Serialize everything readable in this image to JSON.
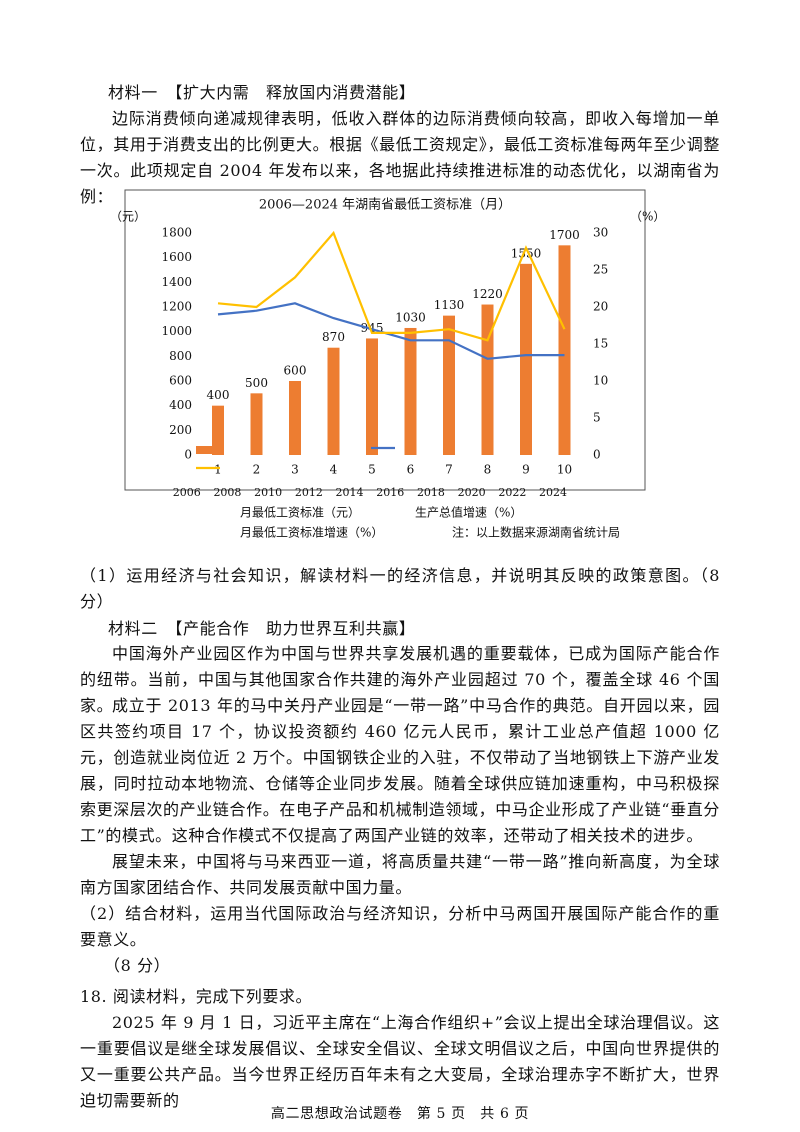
{
  "material1": {
    "heading": "材料一　【扩大内需　释放国内消费潜能】",
    "paragraph": "边际消费倾向递减规律表明，低收入群体的边际消费倾向较高，即收入每增加一单位，其用于消费支出的比例更大。根据《最低工资规定》，最低工资标准每两年至少调整一次。此项规定自 2004 年发布以来，各地据此持续推进标准的动态优化，以湖南省为例："
  },
  "chart_data": {
    "type": "bar_line",
    "title": "2006—2024 年湖南省最低工资标准（月）",
    "y_unit": "（元）",
    "y2_unit": "（%）",
    "categories": [
      "1",
      "2",
      "3",
      "4",
      "5",
      "6",
      "7",
      "8",
      "9",
      "10"
    ],
    "years": [
      "2006",
      "2008",
      "2010",
      "2012",
      "2014",
      "2016",
      "2018",
      "2020",
      "2022",
      "2024"
    ],
    "series": [
      {
        "name": "月最低工资标准（元）",
        "type": "bar",
        "color": "#ed7d31",
        "values": [
          400,
          500,
          600,
          870,
          945,
          1030,
          1130,
          1220,
          1550,
          1700
        ]
      },
      {
        "name": "生产总值增速（%）",
        "type": "line",
        "axis": "y2",
        "color": "#4472c4",
        "values": [
          19,
          19.5,
          20.5,
          18.5,
          17,
          15.5,
          15.5,
          13,
          13.5,
          13.5
        ]
      },
      {
        "name": "月最低工资标准增速（%）",
        "type": "line",
        "axis": "y2",
        "color": "#ffc000",
        "values": [
          20.5,
          20,
          24,
          30,
          16.5,
          16.5,
          17,
          15.5,
          28,
          17
        ]
      }
    ],
    "ylim": [
      0,
      1800
    ],
    "yticks": [
      0,
      200,
      400,
      600,
      800,
      1000,
      1200,
      1400,
      1600,
      1800
    ],
    "y2lim": [
      0,
      30
    ],
    "y2ticks": [
      0,
      5,
      10,
      15,
      20,
      25,
      30
    ],
    "note": "注：以上数据来源湖南省统计局"
  },
  "question1": "（1）运用经济与社会知识，解读材料一的经济信息，并说明其反映的政策意图。（8 分）",
  "material2": {
    "heading": "材料二　【产能合作　助力世界互利共赢】",
    "paragraphs": [
      "中国海外产业园区作为中国与世界共享发展机遇的重要载体，已成为国际产能合作的纽带。当前，中国与其他国家合作共建的海外产业园超过 70 个，覆盖全球 46 个国家。",
      "成立于 2013 年的马中关丹产业园是“一带一路”中马合作的典范。自开园以来，园区共签约项目 17 个，协议投资额约 460 亿元人民币，累计工业总产值超 1000 亿元，创造就业岗位近 2 万个。中国钢铁企业的入驻，不仅带动了当地钢铁上下游产业发展，同时拉动本地物流、仓储等企业同步发展。随着全球供应链加速重构，中马积极探索更深层次的产业链合作。在电子产品和机械制造领域，中马企业形成了产业链“垂直分工”的模式。这种合作模式不仅提高了两国产业链的效率，还带动了相关技术的进步。",
      "展望未来，中国将与马来西亚一道，将高质量共建“一带一路”推向新高度，为全球南方国家团结合作、共同发展贡献中国力量。"
    ]
  },
  "question2": {
    "text": "（2）结合材料，运用当代国际政治与经济知识，分析中马两国开展国际产能合作的重要意义。",
    "score": "（8 分）"
  },
  "question18": {
    "heading": "18. 阅读材料，完成下列要求。",
    "paragraph": "2025 年 9 月 1 日，习近平主席在“上海合作组织+”会议上提出全球治理倡议。这一重要倡议是继全球发展倡议、全球安全倡议、全球文明倡议之后，中国向世界提供的又一重要公共产品。当今世界正经历百年未有之大变局，全球治理赤字不断扩大，世界迫切需要新的"
  },
  "footer": "高二思想政治试题卷　第 5 页　共 6 页"
}
